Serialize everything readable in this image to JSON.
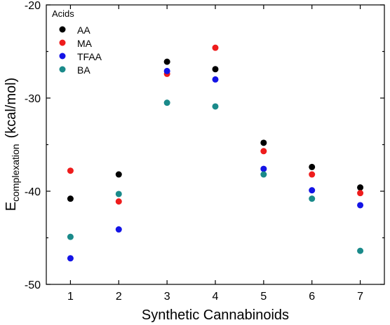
{
  "chart_data": {
    "type": "scatter",
    "xlabel": "Synthetic Cannabinoids",
    "ylabel": {
      "main": "E",
      "subscript": "complexation",
      "unit": "(kcal/mol)"
    },
    "xlim": [
      0.5,
      7.5
    ],
    "ylim": [
      -50,
      -20
    ],
    "x_ticks": [
      1,
      2,
      3,
      4,
      5,
      6,
      7
    ],
    "y_ticks": [
      -50,
      -40,
      -30,
      -20
    ],
    "grid": false,
    "legend": {
      "title": "Acids",
      "placement": "top-left"
    },
    "x": [
      1,
      2,
      3,
      4,
      5,
      6,
      7
    ],
    "series": [
      {
        "name": "AA",
        "color": "#000000",
        "values": [
          -40.8,
          -38.2,
          -26.1,
          -26.9,
          -34.8,
          -37.4,
          -39.6
        ]
      },
      {
        "name": "MA",
        "color": "#ee1c1c",
        "values": [
          -37.8,
          -41.1,
          -27.4,
          -24.6,
          -35.7,
          -38.2,
          -40.2
        ]
      },
      {
        "name": "TFAA",
        "color": "#1414e6",
        "values": [
          -47.2,
          -44.1,
          -27.1,
          -28.0,
          -37.6,
          -39.9,
          -41.5
        ]
      },
      {
        "name": "BA",
        "color": "#1a8a8a",
        "values": [
          -44.9,
          -40.3,
          -30.5,
          -30.9,
          -38.2,
          -40.8,
          -46.4
        ]
      }
    ]
  }
}
